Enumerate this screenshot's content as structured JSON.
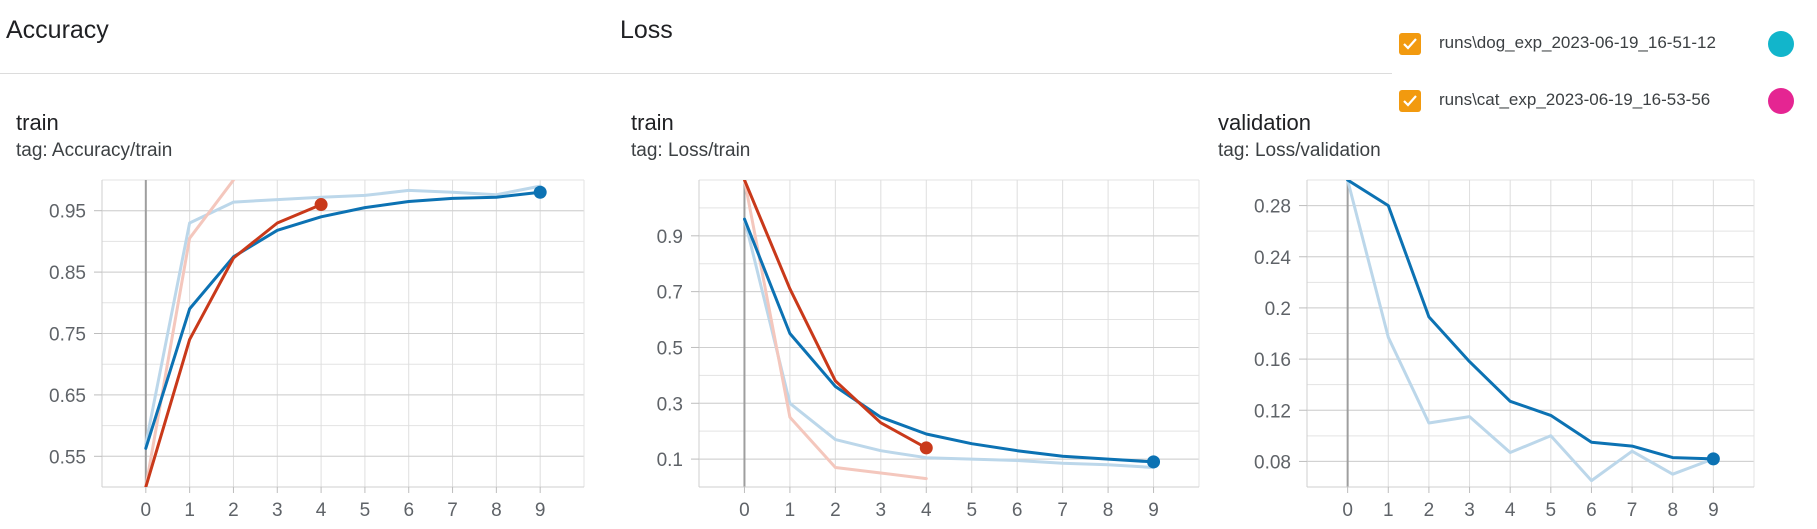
{
  "sections": [
    {
      "title": "Accuracy"
    },
    {
      "title": "Loss"
    }
  ],
  "legend": [
    {
      "label": "runs\\dog_exp_2023-06-19_16-51-12",
      "color": "#12b5cb",
      "checked": true
    },
    {
      "label": "runs\\cat_exp_2023-06-19_16-53-56",
      "color": "#e52592",
      "checked": true
    }
  ],
  "checkbox_color": "#f29a0f",
  "chart_data": [
    {
      "type": "line",
      "title": "train",
      "tag_prefix": "tag: ",
      "tag": "Accuracy/train",
      "xlim": [
        -1,
        10
      ],
      "ylim": [
        0.5,
        1.0
      ],
      "xticks": [
        0,
        1,
        2,
        3,
        4,
        5,
        6,
        7,
        8,
        9
      ],
      "yticks": [
        0.55,
        0.65,
        0.75,
        0.85,
        0.95
      ],
      "ytick_labels": [
        "0.55",
        "0.65",
        "0.75",
        "0.85",
        "0.95"
      ],
      "grid": true,
      "series": [
        {
          "color": "#bcd7ea",
          "x": [
            0,
            1,
            2,
            3,
            4,
            5,
            6,
            7,
            8,
            9
          ],
          "y": [
            0.57,
            0.93,
            0.964,
            0.968,
            0.972,
            0.975,
            0.983,
            0.98,
            0.976,
            0.99
          ]
        },
        {
          "color": "#f4c7bd",
          "x": [
            0,
            1,
            2
          ],
          "y": [
            0.5,
            0.905,
            1.0
          ]
        },
        {
          "color": "#0c72b3",
          "x": [
            0,
            1,
            2,
            3,
            4,
            5,
            6,
            7,
            8,
            9
          ],
          "y": [
            0.563,
            0.79,
            0.875,
            0.918,
            0.94,
            0.955,
            0.965,
            0.97,
            0.972,
            0.98
          ],
          "end_marker": true
        },
        {
          "color": "#c9391a",
          "x": [
            0,
            1,
            2,
            3,
            4
          ],
          "y": [
            0.5,
            0.74,
            0.873,
            0.93,
            0.96
          ],
          "end_marker": true
        }
      ]
    },
    {
      "type": "line",
      "title": "train",
      "tag_prefix": "tag: ",
      "tag": "Loss/train",
      "xlim": [
        -1,
        10
      ],
      "ylim": [
        0.0,
        1.1
      ],
      "xticks": [
        0,
        1,
        2,
        3,
        4,
        5,
        6,
        7,
        8,
        9
      ],
      "yticks": [
        0.1,
        0.3,
        0.5,
        0.7,
        0.9
      ],
      "ytick_labels": [
        "0.1",
        "0.3",
        "0.5",
        "0.7",
        "0.9"
      ],
      "grid": true,
      "series": [
        {
          "color": "#bcd7ea",
          "x": [
            0,
            1,
            2,
            3,
            4,
            5,
            6,
            7,
            8,
            9
          ],
          "y": [
            0.96,
            0.3,
            0.17,
            0.13,
            0.105,
            0.1,
            0.095,
            0.085,
            0.08,
            0.07
          ]
        },
        {
          "color": "#f4c7bd",
          "x": [
            0,
            1,
            2,
            3,
            4
          ],
          "y": [
            1.1,
            0.25,
            0.07,
            0.05,
            0.03
          ]
        },
        {
          "color": "#0c72b3",
          "x": [
            0,
            1,
            2,
            3,
            4,
            5,
            6,
            7,
            8,
            9
          ],
          "y": [
            0.96,
            0.55,
            0.36,
            0.25,
            0.19,
            0.155,
            0.13,
            0.11,
            0.1,
            0.09
          ],
          "end_marker": true
        },
        {
          "color": "#c9391a",
          "x": [
            0,
            1,
            2,
            3,
            4
          ],
          "y": [
            1.1,
            0.71,
            0.38,
            0.23,
            0.14
          ],
          "end_marker": true
        }
      ]
    },
    {
      "type": "line",
      "title": "validation",
      "tag_prefix": "tag: ",
      "tag": "Loss/validation",
      "xlim": [
        -1,
        10
      ],
      "ylim": [
        0.06,
        0.3
      ],
      "xticks": [
        0,
        1,
        2,
        3,
        4,
        5,
        6,
        7,
        8,
        9
      ],
      "yticks": [
        0.08,
        0.12,
        0.16,
        0.2,
        0.24,
        0.28
      ],
      "ytick_labels": [
        "0.08",
        "0.12",
        "0.16",
        "0.2",
        "0.24",
        "0.28"
      ],
      "grid": true,
      "series": [
        {
          "color": "#bcd7ea",
          "x": [
            0,
            1,
            2,
            3,
            4,
            5,
            6,
            7,
            8,
            9
          ],
          "y": [
            0.3,
            0.177,
            0.11,
            0.115,
            0.087,
            0.1,
            0.065,
            0.088,
            0.07,
            0.082
          ]
        },
        {
          "color": "#0c72b3",
          "x": [
            0,
            1,
            2,
            3,
            4,
            5,
            6,
            7,
            8,
            9
          ],
          "y": [
            0.3,
            0.28,
            0.193,
            0.158,
            0.127,
            0.116,
            0.095,
            0.092,
            0.083,
            0.082
          ],
          "end_marker": true
        }
      ]
    }
  ]
}
